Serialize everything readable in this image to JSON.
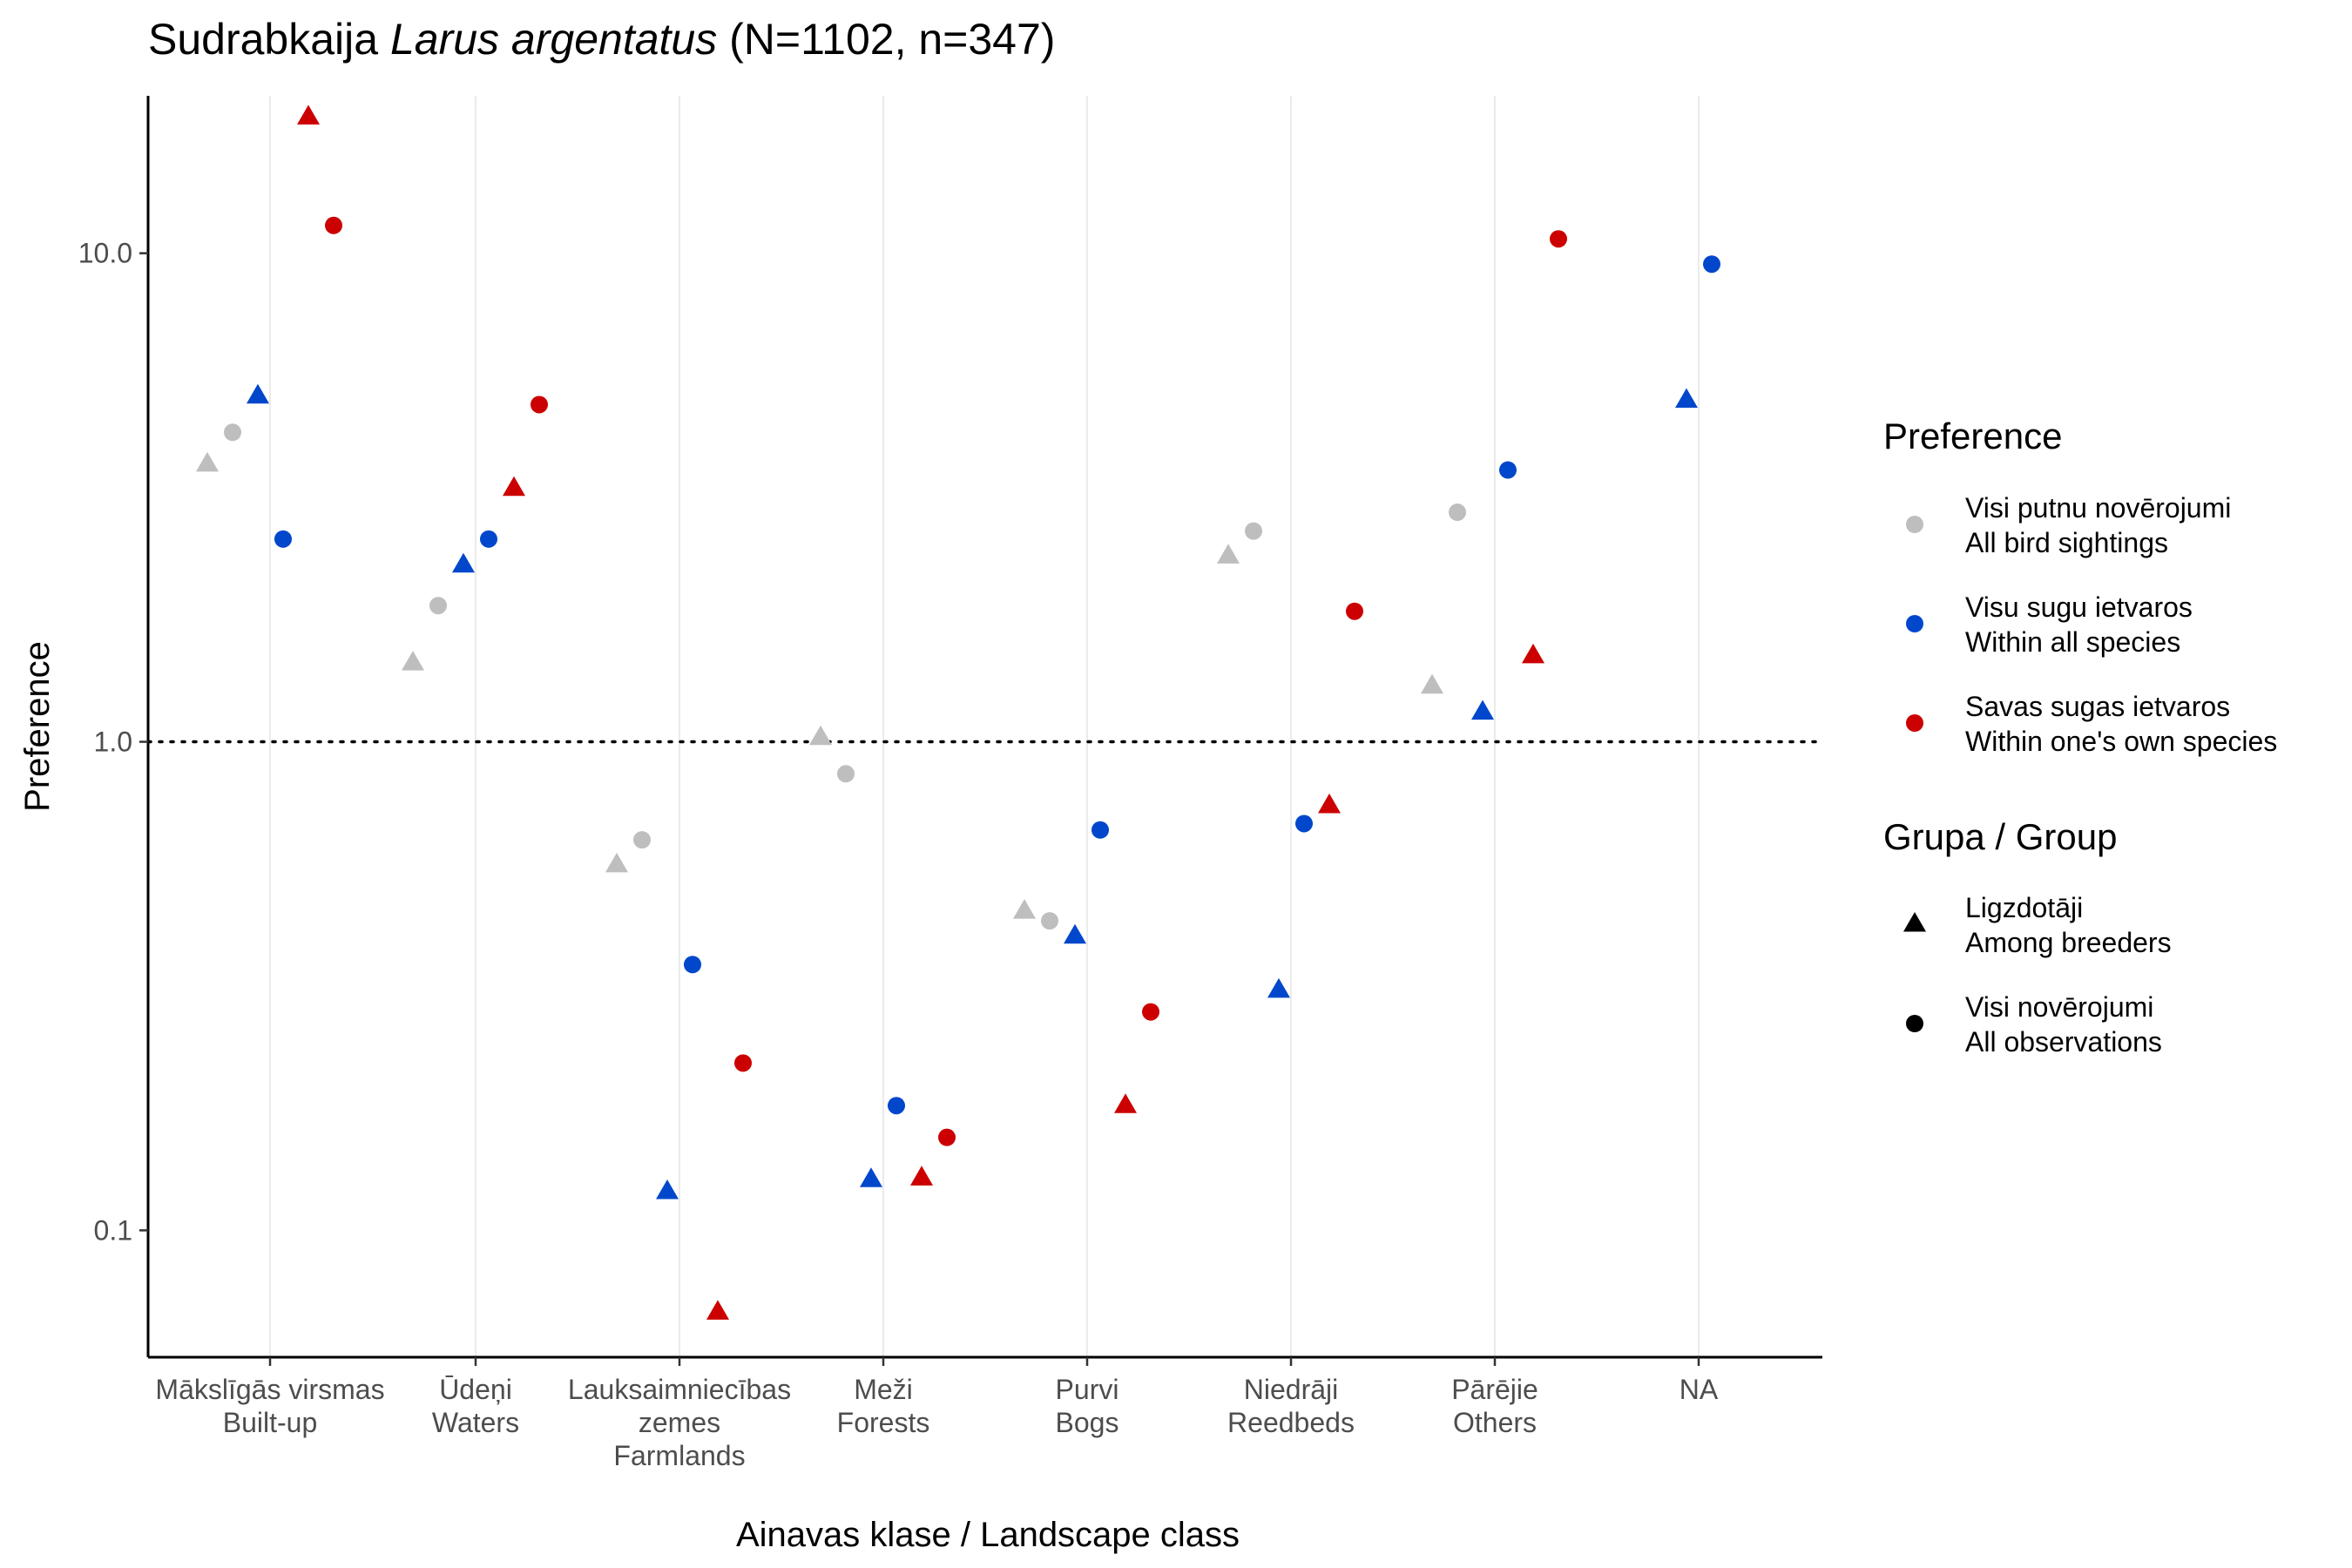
{
  "chart_data": {
    "type": "scatter",
    "title_prefix": "Sudrabkaija ",
    "title_italic": "Larus argentatus",
    "title_suffix": " (N=1102, n=347)",
    "xlabel": "Ainavas klase / Landscape class",
    "ylabel": "Preference",
    "y_scale": "log10",
    "ylim": [
      0.055,
      21
    ],
    "y_ticks": [
      {
        "value": 0.1,
        "label": "0.1"
      },
      {
        "value": 1.0,
        "label": "1.0"
      },
      {
        "value": 10.0,
        "label": "10.0"
      }
    ],
    "reference_line": {
      "value": 1.0,
      "style": "dotted"
    },
    "grid": "vertical-major",
    "categories": [
      {
        "key": "builtup",
        "lines": [
          "Mākslīgās virsmas",
          "Built-up"
        ]
      },
      {
        "key": "waters",
        "lines": [
          "Ūdeņi",
          "Waters"
        ]
      },
      {
        "key": "farmlands",
        "lines": [
          "Lauksaimniecības",
          "zemes",
          "Farmlands"
        ]
      },
      {
        "key": "forests",
        "lines": [
          "Meži",
          "Forests"
        ]
      },
      {
        "key": "bogs",
        "lines": [
          "Purvi",
          "Bogs"
        ]
      },
      {
        "key": "reedbeds",
        "lines": [
          "Niedrāji",
          "Reedbeds"
        ]
      },
      {
        "key": "others",
        "lines": [
          "Pārējie",
          "Others"
        ]
      },
      {
        "key": "na",
        "lines": [
          "NA"
        ]
      }
    ],
    "colors": {
      "all_bird": "#bebebe",
      "all_species": "#0047cc",
      "own_species": "#cc0000",
      "legend_shape": "#000000"
    },
    "legend": {
      "placement": "right",
      "preference_title": "Preference",
      "preference_items": [
        {
          "color": "all_bird",
          "lines": [
            "Visi putnu novērojumi",
            "All bird sightings"
          ]
        },
        {
          "color": "all_species",
          "lines": [
            "Visu sugu ietvaros",
            "Within all species"
          ]
        },
        {
          "color": "own_species",
          "lines": [
            "Savas sugas ietvaros",
            "Within one's own species"
          ]
        }
      ],
      "group_title": "Grupa / Group",
      "group_items": [
        {
          "shape": "triangle",
          "lines": [
            "Ligzdotāji",
            "Among breeders"
          ]
        },
        {
          "shape": "circle",
          "lines": [
            "Visi novērojumi",
            "All observations"
          ]
        }
      ]
    },
    "points": [
      {
        "category": 0,
        "pref": "all_bird",
        "group": "breeders",
        "y": 3.7
      },
      {
        "category": 0,
        "pref": "all_bird",
        "group": "all",
        "y": 4.3
      },
      {
        "category": 0,
        "pref": "all_species",
        "group": "breeders",
        "y": 5.1
      },
      {
        "category": 0,
        "pref": "all_species",
        "group": "all",
        "y": 2.6
      },
      {
        "category": 0,
        "pref": "own_species",
        "group": "breeders",
        "y": 19.0
      },
      {
        "category": 0,
        "pref": "own_species",
        "group": "all",
        "y": 11.4
      },
      {
        "category": 1,
        "pref": "all_bird",
        "group": "breeders",
        "y": 1.45
      },
      {
        "category": 1,
        "pref": "all_bird",
        "group": "all",
        "y": 1.9
      },
      {
        "category": 1,
        "pref": "all_species",
        "group": "breeders",
        "y": 2.3
      },
      {
        "category": 1,
        "pref": "all_species",
        "group": "all",
        "y": 2.6
      },
      {
        "category": 1,
        "pref": "own_species",
        "group": "breeders",
        "y": 3.3
      },
      {
        "category": 1,
        "pref": "own_species",
        "group": "all",
        "y": 4.9
      },
      {
        "category": 2,
        "pref": "all_bird",
        "group": "breeders",
        "y": 0.56
      },
      {
        "category": 2,
        "pref": "all_bird",
        "group": "all",
        "y": 0.63
      },
      {
        "category": 2,
        "pref": "all_species",
        "group": "breeders",
        "y": 0.12
      },
      {
        "category": 2,
        "pref": "all_species",
        "group": "all",
        "y": 0.35
      },
      {
        "category": 2,
        "pref": "own_species",
        "group": "breeders",
        "y": 0.068
      },
      {
        "category": 2,
        "pref": "own_species",
        "group": "all",
        "y": 0.22
      },
      {
        "category": 3,
        "pref": "all_bird",
        "group": "breeders",
        "y": 1.02
      },
      {
        "category": 3,
        "pref": "all_bird",
        "group": "all",
        "y": 0.86
      },
      {
        "category": 3,
        "pref": "all_species",
        "group": "breeders",
        "y": 0.127
      },
      {
        "category": 3,
        "pref": "all_species",
        "group": "all",
        "y": 0.18
      },
      {
        "category": 3,
        "pref": "own_species",
        "group": "breeders",
        "y": 0.128
      },
      {
        "category": 3,
        "pref": "own_species",
        "group": "all",
        "y": 0.155
      },
      {
        "category": 4,
        "pref": "all_bird",
        "group": "breeders",
        "y": 0.45
      },
      {
        "category": 4,
        "pref": "all_bird",
        "group": "all",
        "y": 0.43
      },
      {
        "category": 4,
        "pref": "all_species",
        "group": "breeders",
        "y": 0.4
      },
      {
        "category": 4,
        "pref": "all_species",
        "group": "all",
        "y": 0.66
      },
      {
        "category": 4,
        "pref": "own_species",
        "group": "breeders",
        "y": 0.18
      },
      {
        "category": 4,
        "pref": "own_species",
        "group": "all",
        "y": 0.28
      },
      {
        "category": 5,
        "pref": "all_bird",
        "group": "breeders",
        "y": 2.4
      },
      {
        "category": 5,
        "pref": "all_bird",
        "group": "all",
        "y": 2.7
      },
      {
        "category": 5,
        "pref": "all_species",
        "group": "breeders",
        "y": 0.31
      },
      {
        "category": 5,
        "pref": "all_species",
        "group": "all",
        "y": 0.68
      },
      {
        "category": 5,
        "pref": "own_species",
        "group": "breeders",
        "y": 0.74
      },
      {
        "category": 5,
        "pref": "own_species",
        "group": "all",
        "y": 1.85
      },
      {
        "category": 6,
        "pref": "all_bird",
        "group": "breeders",
        "y": 1.3
      },
      {
        "category": 6,
        "pref": "all_bird",
        "group": "all",
        "y": 2.95
      },
      {
        "category": 6,
        "pref": "all_species",
        "group": "breeders",
        "y": 1.15
      },
      {
        "category": 6,
        "pref": "all_species",
        "group": "all",
        "y": 3.6
      },
      {
        "category": 6,
        "pref": "own_species",
        "group": "breeders",
        "y": 1.5
      },
      {
        "category": 6,
        "pref": "own_species",
        "group": "all",
        "y": 10.7
      },
      {
        "category": 7,
        "pref": "all_species",
        "group": "breeders",
        "y": 5.0
      },
      {
        "category": 7,
        "pref": "all_species",
        "group": "all",
        "y": 9.5
      }
    ]
  }
}
